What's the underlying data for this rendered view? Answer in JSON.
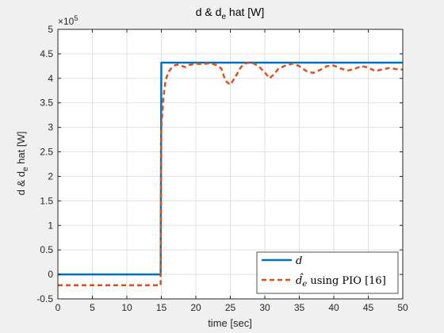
{
  "chart_data": {
    "type": "line",
    "title": {
      "base": "d & d",
      "sub": "e",
      "rest": " hat [W]"
    },
    "xlabel": "time [sec]",
    "ylabel": {
      "base": "d & d",
      "sub": "e",
      "rest": " hat [W]"
    },
    "exponent": {
      "base": "×10",
      "power": "5"
    },
    "xlim": [
      0,
      50
    ],
    "ylim": [
      -0.5,
      5
    ],
    "x_ticks": [
      0,
      5,
      10,
      15,
      20,
      25,
      30,
      35,
      40,
      45,
      50
    ],
    "x_tick_labels": [
      "0",
      "5",
      "10",
      "15",
      "20",
      "25",
      "30",
      "35",
      "40",
      "45",
      "50"
    ],
    "y_ticks": [
      -0.5,
      0,
      0.5,
      1,
      1.5,
      2,
      2.5,
      3,
      3.5,
      4,
      4.5,
      5
    ],
    "y_tick_labels": [
      "-0.5",
      "0",
      "0.5",
      "1",
      "1.5",
      "2",
      "2.5",
      "3",
      "3.5",
      "4",
      "4.5",
      "5"
    ],
    "grid": true,
    "legend_position": "bottom-right",
    "series": [
      {
        "name": "d",
        "legend_label": "d",
        "color": "#0072BD",
        "style": "solid",
        "x": [
          0,
          14.9,
          14.9,
          15,
          15,
          50
        ],
        "y": [
          0,
          0,
          0,
          4.32,
          4.32,
          4.32
        ]
      },
      {
        "name": "d_e hat using PIO [16]",
        "legend_label": {
          "italic": "d̂",
          "sub": "e",
          "rest": " using PIO [16]"
        },
        "color": "#D95319",
        "style": "dashed",
        "x": [
          0,
          14.9,
          14.9,
          15,
          15.3,
          15.6,
          16,
          16.5,
          17,
          17.5,
          18,
          18.5,
          19,
          20,
          21,
          22,
          23,
          23.7,
          24.3,
          25,
          25.7,
          26.4,
          27,
          27.7,
          28.5,
          29.3,
          30,
          30.7,
          31.3,
          32,
          33,
          34,
          35,
          36,
          37,
          38,
          39,
          40,
          41,
          42,
          43,
          44,
          45,
          46,
          47,
          48,
          49,
          50
        ],
        "y": [
          -0.22,
          -0.22,
          -0.22,
          3.0,
          3.6,
          3.95,
          4.12,
          4.22,
          4.27,
          4.28,
          4.25,
          4.23,
          4.27,
          4.3,
          4.29,
          4.31,
          4.27,
          4.2,
          3.95,
          3.87,
          4.02,
          4.2,
          4.3,
          4.32,
          4.3,
          4.22,
          4.12,
          4.0,
          4.08,
          4.2,
          4.26,
          4.3,
          4.25,
          4.15,
          4.11,
          4.17,
          4.25,
          4.26,
          4.2,
          4.16,
          4.19,
          4.25,
          4.22,
          4.15,
          4.18,
          4.21,
          4.19,
          4.18
        ]
      }
    ]
  }
}
